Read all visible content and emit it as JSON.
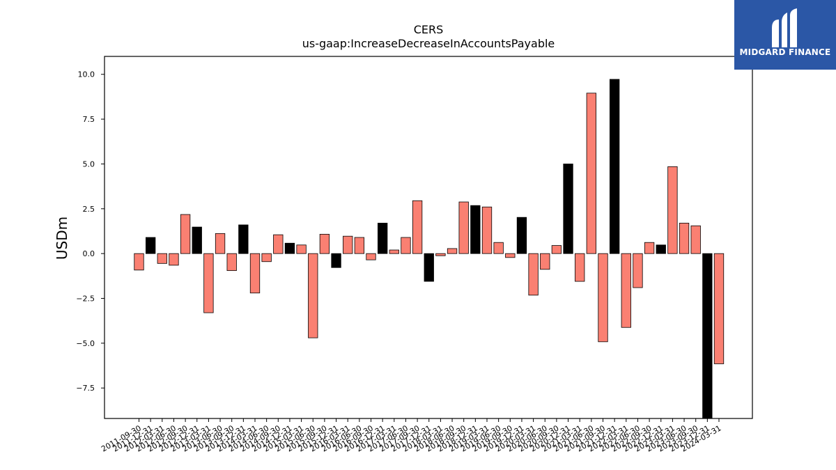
{
  "chart_data": {
    "type": "bar",
    "title": "CERS",
    "subtitle": "us-gaap:IncreaseDecreaseInAccountsPayable",
    "xlabel": "",
    "ylabel": "USDm",
    "ylim": [
      -9.2,
      11.0
    ],
    "yticks": [
      "10.0",
      "7.5",
      "5.0",
      "2.5",
      "0.0",
      "−2.5",
      "−5.0",
      "−7.5"
    ],
    "ytick_values": [
      10.0,
      7.5,
      5.0,
      2.5,
      0.0,
      -2.5,
      -5.0,
      -7.5
    ],
    "grid": false,
    "colors": {
      "quarter": "#fa8072",
      "year_end": "#000000",
      "edge": "#000000"
    },
    "bars": [
      {
        "x": "2011-09-30",
        "value": -0.92,
        "color": "salmon"
      },
      {
        "x": "2011-12-31",
        "value": 0.9,
        "color": "black"
      },
      {
        "x": "2012-03-31",
        "value": -0.55,
        "color": "salmon"
      },
      {
        "x": "2012-06-30",
        "value": -0.65,
        "color": "salmon"
      },
      {
        "x": "2012-09-30",
        "value": 2.18,
        "color": "salmon"
      },
      {
        "x": "2012-12-31",
        "value": 1.48,
        "color": "black"
      },
      {
        "x": "2013-03-31",
        "value": -3.3,
        "color": "salmon"
      },
      {
        "x": "2013-06-30",
        "value": 1.12,
        "color": "salmon"
      },
      {
        "x": "2013-09-30",
        "value": -0.95,
        "color": "salmon"
      },
      {
        "x": "2013-12-31",
        "value": 1.6,
        "color": "black"
      },
      {
        "x": "2014-03-31",
        "value": -2.2,
        "color": "salmon"
      },
      {
        "x": "2014-06-30",
        "value": -0.45,
        "color": "salmon"
      },
      {
        "x": "2014-09-30",
        "value": 1.05,
        "color": "salmon"
      },
      {
        "x": "2014-12-31",
        "value": 0.58,
        "color": "black"
      },
      {
        "x": "2015-03-31",
        "value": 0.48,
        "color": "salmon"
      },
      {
        "x": "2015-06-30",
        "value": -4.7,
        "color": "salmon"
      },
      {
        "x": "2015-09-30",
        "value": 1.08,
        "color": "salmon"
      },
      {
        "x": "2015-12-31",
        "value": -0.78,
        "color": "black"
      },
      {
        "x": "2016-03-31",
        "value": 0.97,
        "color": "salmon"
      },
      {
        "x": "2016-06-30",
        "value": 0.9,
        "color": "salmon"
      },
      {
        "x": "2016-09-30",
        "value": -0.35,
        "color": "salmon"
      },
      {
        "x": "2016-12-31",
        "value": 1.7,
        "color": "black"
      },
      {
        "x": "2017-03-31",
        "value": 0.2,
        "color": "salmon"
      },
      {
        "x": "2017-06-30",
        "value": 0.9,
        "color": "salmon"
      },
      {
        "x": "2017-09-30",
        "value": 2.95,
        "color": "salmon"
      },
      {
        "x": "2017-12-31",
        "value": -1.55,
        "color": "black"
      },
      {
        "x": "2018-03-31",
        "value": -0.12,
        "color": "salmon"
      },
      {
        "x": "2018-06-30",
        "value": 0.28,
        "color": "salmon"
      },
      {
        "x": "2018-09-30",
        "value": 2.88,
        "color": "salmon"
      },
      {
        "x": "2018-12-31",
        "value": 2.68,
        "color": "black"
      },
      {
        "x": "2019-03-31",
        "value": 2.6,
        "color": "salmon"
      },
      {
        "x": "2019-06-30",
        "value": 0.62,
        "color": "salmon"
      },
      {
        "x": "2019-09-30",
        "value": -0.22,
        "color": "salmon"
      },
      {
        "x": "2019-12-31",
        "value": 2.02,
        "color": "black"
      },
      {
        "x": "2020-03-31",
        "value": -2.32,
        "color": "salmon"
      },
      {
        "x": "2020-06-30",
        "value": -0.88,
        "color": "salmon"
      },
      {
        "x": "2020-09-30",
        "value": 0.45,
        "color": "salmon"
      },
      {
        "x": "2020-12-31",
        "value": 5.0,
        "color": "black"
      },
      {
        "x": "2021-03-31",
        "value": -1.55,
        "color": "salmon"
      },
      {
        "x": "2021-06-30",
        "value": 8.95,
        "color": "salmon"
      },
      {
        "x": "2021-09-30",
        "value": -4.92,
        "color": "salmon"
      },
      {
        "x": "2021-12-31",
        "value": 9.72,
        "color": "black"
      },
      {
        "x": "2022-03-31",
        "value": -4.12,
        "color": "salmon"
      },
      {
        "x": "2022-06-30",
        "value": -1.9,
        "color": "salmon"
      },
      {
        "x": "2022-09-30",
        "value": 0.62,
        "color": "salmon"
      },
      {
        "x": "2022-12-31",
        "value": 0.48,
        "color": "black"
      },
      {
        "x": "2023-03-31",
        "value": 4.85,
        "color": "salmon"
      },
      {
        "x": "2023-06-30",
        "value": 1.7,
        "color": "salmon"
      },
      {
        "x": "2023-09-30",
        "value": 1.55,
        "color": "salmon"
      },
      {
        "x": "2023-12-31",
        "value": -9.2,
        "color": "black"
      },
      {
        "x": "2024-03-31",
        "value": -6.15,
        "color": "salmon"
      }
    ]
  },
  "logo": {
    "text": "MIDGARD FINANCE",
    "icon": "midgard-m-logo-icon",
    "color": "#2b57a6"
  }
}
